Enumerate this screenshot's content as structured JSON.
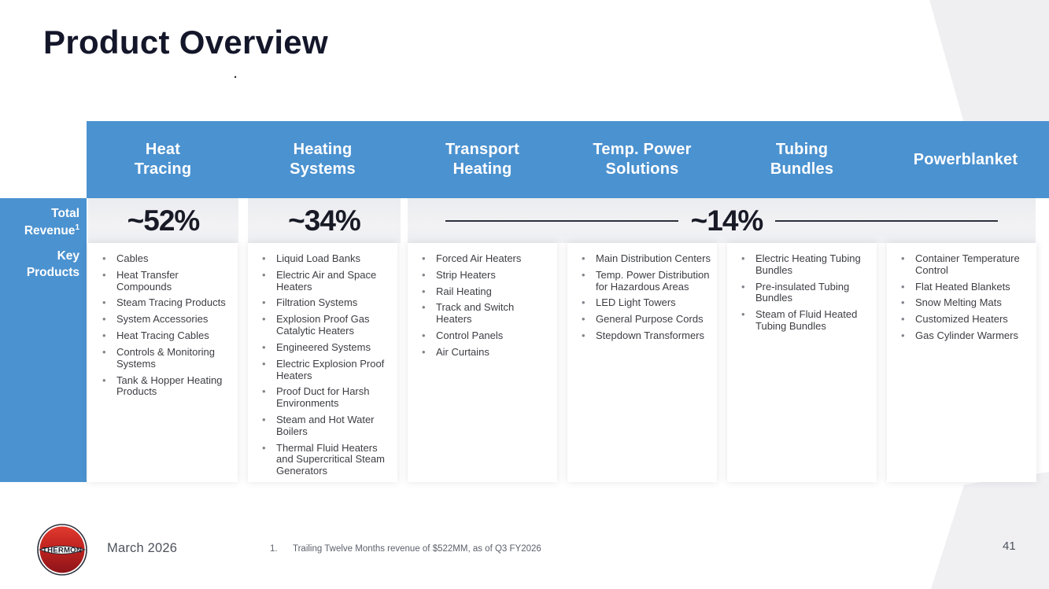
{
  "slide": {
    "title": "Product Overview",
    "stray_dot": ".",
    "page_number": "41"
  },
  "footer": {
    "logo_text": "THERMON",
    "date": "March 2026",
    "footnote_number": "1.",
    "footnote_text": "Trailing Twelve Months revenue of $522MM, as of Q3 FY2026"
  },
  "table": {
    "revenue_row_label": "Total Revenue",
    "revenue_row_label_superscript": "1",
    "products_row_label": "Key Products",
    "revenue_groups": [
      {
        "value": "~52%",
        "spans_columns": [
          "Heat Tracing"
        ]
      },
      {
        "value": "~34%",
        "spans_columns": [
          "Heating Systems"
        ]
      },
      {
        "value": "~14%",
        "spans_columns": [
          "Transport Heating",
          "Temp. Power Solutions",
          "Tubing Bundles",
          "Powerblanket"
        ]
      }
    ],
    "columns": [
      {
        "header": "Heat Tracing",
        "header_lines": [
          "Heat",
          "Tracing"
        ],
        "products": [
          "Cables",
          "Heat Transfer Compounds",
          "Steam Tracing Products",
          "System Accessories",
          "Heat Tracing Cables",
          "Controls & Monitoring Systems",
          "Tank & Hopper Heating Products"
        ]
      },
      {
        "header": "Heating Systems",
        "header_lines": [
          "Heating",
          "Systems"
        ],
        "products": [
          "Liquid Load Banks",
          "Electric Air and Space Heaters",
          "Filtration Systems",
          "Explosion Proof Gas Catalytic Heaters",
          "Engineered Systems",
          "Electric Explosion Proof Heaters",
          "Proof Duct for Harsh Environments",
          "Steam and Hot Water Boilers",
          "Thermal Fluid Heaters and Supercritical Steam Generators"
        ]
      },
      {
        "header": "Transport Heating",
        "header_lines": [
          "Transport",
          "Heating"
        ],
        "products": [
          "Forced Air Heaters",
          "Strip Heaters",
          "Rail Heating",
          "Track and Switch Heaters",
          "Control Panels",
          "Air Curtains"
        ]
      },
      {
        "header": "Temp. Power Solutions",
        "header_lines": [
          "Temp. Power",
          "Solutions"
        ],
        "products": [
          "Main Distribution Centers",
          "Temp. Power Distribution for Hazardous Areas",
          "LED Light Towers",
          "General Purpose Cords",
          "Stepdown Transformers"
        ]
      },
      {
        "header": "Tubing Bundles",
        "header_lines": [
          "Tubing",
          "Bundles"
        ],
        "products": [
          "Electric Heating Tubing Bundles",
          "Pre-insulated Tubing Bundles",
          "Steam of Fluid Heated Tubing Bundles"
        ]
      },
      {
        "header": "Powerblanket",
        "header_lines": [
          "Powerblanket"
        ],
        "products": [
          "Container Temperature Control",
          "Flat Heated Blankets",
          "Snow Melting Mats",
          "Customized Heaters",
          "Gas Cylinder Warmers"
        ]
      }
    ]
  },
  "colors": {
    "accent_blue": "#4b92d0",
    "dark_text": "#14172a",
    "logo_red": "#c0231f"
  }
}
